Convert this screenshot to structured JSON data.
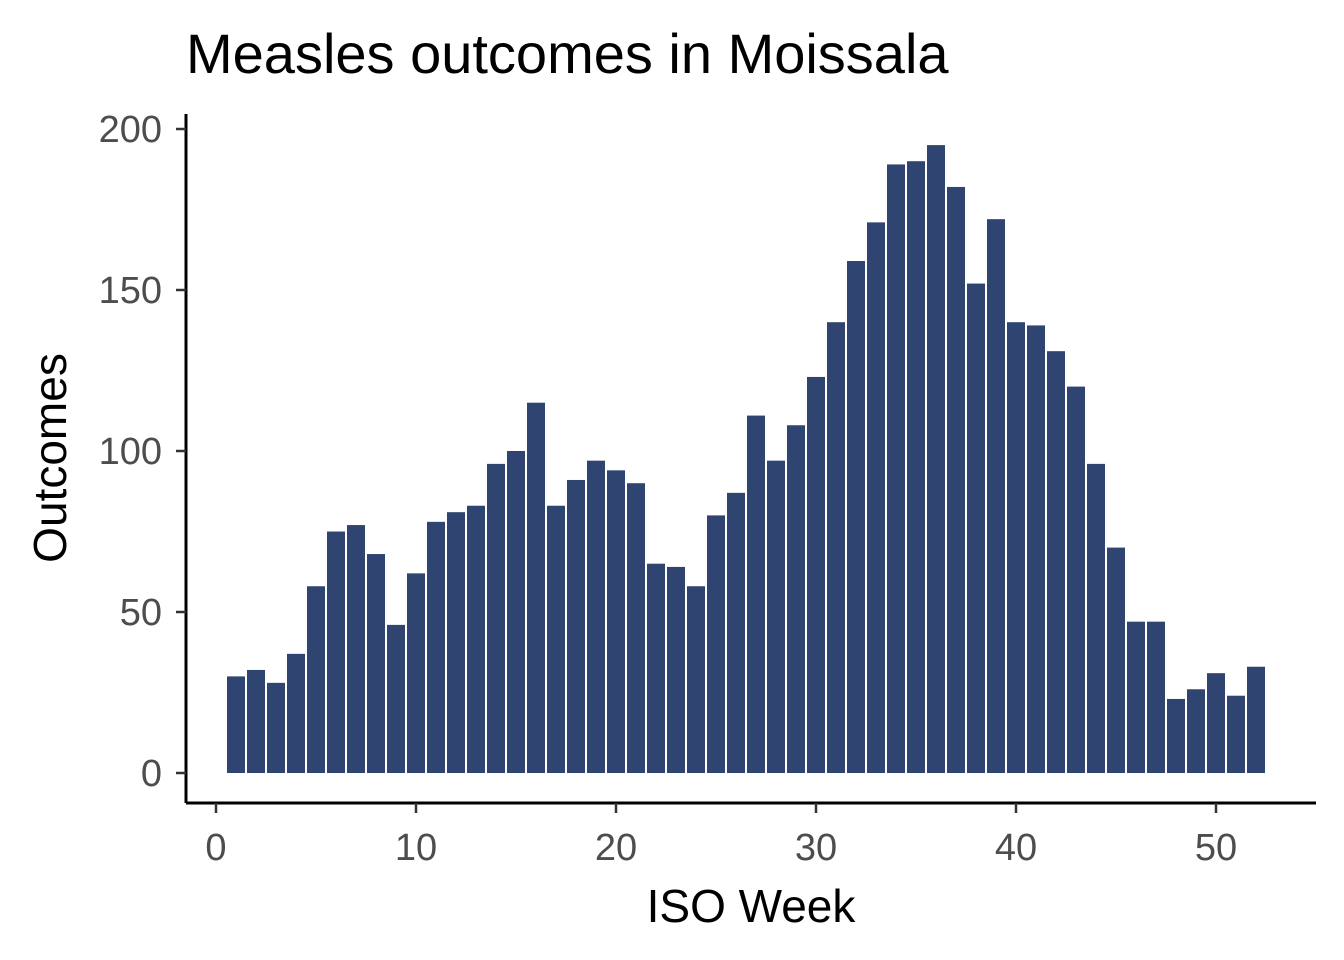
{
  "chart_data": {
    "type": "bar",
    "title": "Measles outcomes in Moissala",
    "xlabel": "ISO Week",
    "ylabel": "Outcomes",
    "xlim": [
      -1.5,
      55
    ],
    "ylim": [
      -9.5,
      200
    ],
    "x_ticks": [
      0,
      10,
      20,
      30,
      40,
      50
    ],
    "y_ticks": [
      0,
      50,
      100,
      150,
      200
    ],
    "grid": false,
    "legend": "none",
    "bar_color": "#2f4470",
    "x": [
      1,
      2,
      3,
      4,
      5,
      6,
      7,
      8,
      9,
      10,
      11,
      12,
      13,
      14,
      15,
      16,
      17,
      18,
      19,
      20,
      21,
      22,
      23,
      24,
      25,
      26,
      27,
      28,
      29,
      30,
      31,
      32,
      33,
      34,
      35,
      36,
      37,
      38,
      39,
      40,
      41,
      42,
      43,
      44,
      45,
      46,
      47,
      48,
      49,
      50,
      51,
      52
    ],
    "values": [
      30,
      32,
      28,
      37,
      58,
      75,
      77,
      68,
      46,
      62,
      78,
      81,
      83,
      96,
      100,
      115,
      83,
      91,
      97,
      94,
      90,
      65,
      64,
      58,
      80,
      87,
      111,
      97,
      108,
      123,
      140,
      159,
      171,
      189,
      190,
      195,
      182,
      152,
      172,
      140,
      139,
      131,
      120,
      96,
      70,
      47,
      47,
      23,
      26,
      31,
      24,
      33
    ]
  }
}
